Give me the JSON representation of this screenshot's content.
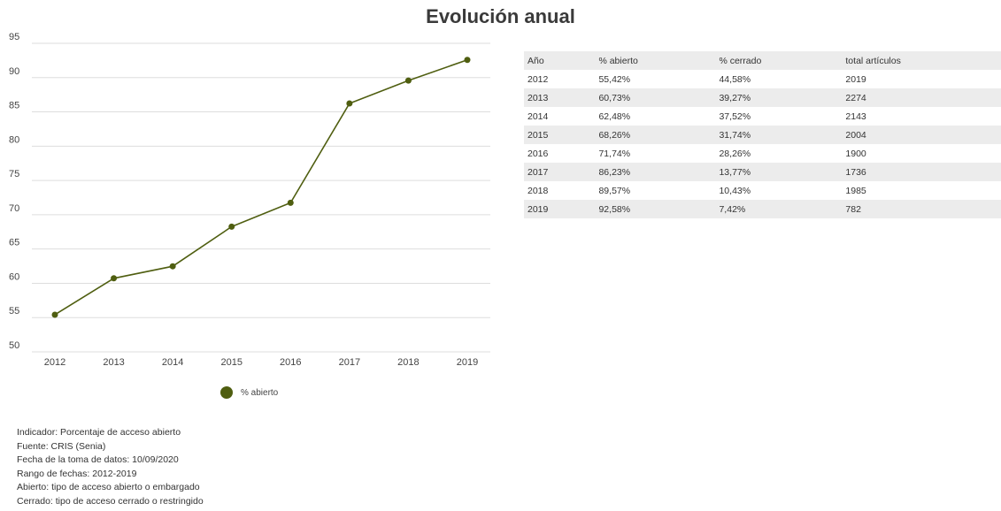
{
  "title": "Evolución anual",
  "chart_data": {
    "type": "line",
    "title": "Evolución anual",
    "xlabel": "",
    "ylabel": "",
    "categories": [
      "2012",
      "2013",
      "2014",
      "2015",
      "2016",
      "2017",
      "2018",
      "2019"
    ],
    "series": [
      {
        "name": "% abierto",
        "values": [
          55.42,
          60.73,
          62.48,
          68.26,
          71.74,
          86.23,
          89.57,
          92.58
        ],
        "color": "#4f5e10"
      }
    ],
    "ylim": [
      50,
      95
    ],
    "yticks": [
      "50",
      "55",
      "60",
      "65",
      "70",
      "75",
      "80",
      "85",
      "90",
      "95"
    ],
    "grid": true,
    "legend_position": "bottom-center"
  },
  "table": {
    "headers": [
      "Año",
      "% abierto",
      "% cerrado",
      "total artículos"
    ],
    "rows": [
      [
        "2012",
        "55,42%",
        "44,58%",
        "2019"
      ],
      [
        "2013",
        "60,73%",
        "39,27%",
        "2274"
      ],
      [
        "2014",
        "62,48%",
        "37,52%",
        "2143"
      ],
      [
        "2015",
        "68,26%",
        "31,74%",
        "2004"
      ],
      [
        "2016",
        "71,74%",
        "28,26%",
        "1900"
      ],
      [
        "2017",
        "86,23%",
        "13,77%",
        "1736"
      ],
      [
        "2018",
        "89,57%",
        "10,43%",
        "1985"
      ],
      [
        "2019",
        "92,58%",
        "7,42%",
        "782"
      ]
    ]
  },
  "notes": [
    "Indicador: Porcentaje de acceso abierto",
    "Fuente: CRIS (Senia)",
    "Fecha de la toma de datos: 10/09/2020",
    "Rango de fechas: 2012-2019",
    "Abierto: tipo de acceso abierto o embargado",
    "Cerrado: tipo de acceso cerrado o restringido"
  ],
  "colors": {
    "series": "#4f5e10",
    "grid": "#dddddd",
    "table_stripe": "#ececec"
  }
}
